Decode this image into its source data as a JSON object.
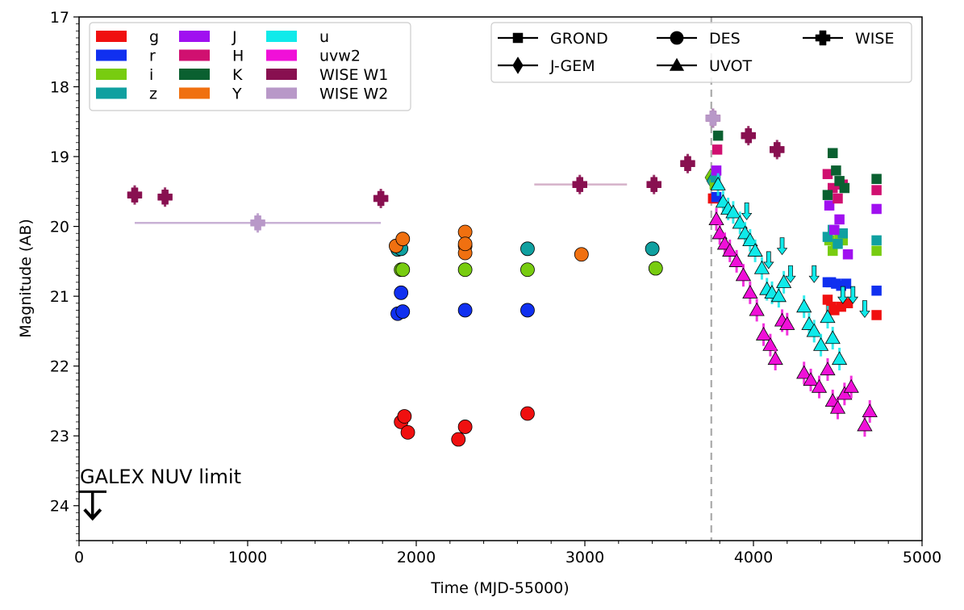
{
  "chart_data": {
    "type": "scatter",
    "title": "",
    "xlabel": "Time (MJD-55000)",
    "ylabel": "Magnitude (AB)",
    "xlim": [
      0,
      5000
    ],
    "ylim": [
      24.5,
      17
    ],
    "y_inverted": true,
    "x_ticks": [
      0,
      1000,
      2000,
      3000,
      4000,
      5000
    ],
    "y_ticks": [
      17,
      18,
      19,
      20,
      21,
      22,
      23,
      24
    ],
    "grid": false,
    "vertical_line": {
      "x": 3750,
      "style": "dashed",
      "color": "#aaaaaa"
    },
    "annotation": {
      "text": "GALEX NUV limit",
      "x": 80,
      "y": 23.8
    },
    "filter_legend": [
      {
        "label": "g",
        "color": "#f01010"
      },
      {
        "label": "r",
        "color": "#1030f0"
      },
      {
        "label": "i",
        "color": "#78cc10"
      },
      {
        "label": "z",
        "color": "#10a0a0"
      },
      {
        "label": "J",
        "color": "#a010f0"
      },
      {
        "label": "H",
        "color": "#d01070"
      },
      {
        "label": "K",
        "color": "#0a6030"
      },
      {
        "label": "Y",
        "color": "#f07010"
      },
      {
        "label": "u",
        "color": "#10eaea"
      },
      {
        "label": "uvw2",
        "color": "#f010d8"
      },
      {
        "label": "WISE W1",
        "color": "#881050"
      },
      {
        "label": "WISE W2",
        "color": "#b898c8"
      }
    ],
    "instrument_legend": [
      {
        "label": "GROND",
        "marker": "square"
      },
      {
        "label": "J-GEM",
        "marker": "diamond"
      },
      {
        "label": "DES",
        "marker": "circle"
      },
      {
        "label": "UVOT",
        "marker": "triangle"
      },
      {
        "label": "WISE",
        "marker": "plus"
      }
    ],
    "series": [
      {
        "name": "DES g",
        "filter": "g",
        "marker": "circle",
        "x": [
          1910,
          1930,
          1950,
          2250,
          2290,
          2660
        ],
        "y": [
          22.8,
          22.72,
          22.95,
          23.05,
          22.87,
          22.68
        ]
      },
      {
        "name": "DES r",
        "filter": "r",
        "marker": "circle",
        "x": [
          1890,
          1910,
          1920,
          2290,
          2660
        ],
        "y": [
          21.25,
          20.95,
          21.22,
          21.2,
          21.2
        ]
      },
      {
        "name": "DES i",
        "filter": "i",
        "marker": "circle",
        "x": [
          1910,
          1920,
          2290,
          2660,
          3420
        ],
        "y": [
          20.62,
          20.62,
          20.62,
          20.62,
          20.6
        ]
      },
      {
        "name": "DES z",
        "filter": "z",
        "marker": "circle",
        "x": [
          1890,
          1910,
          2660,
          3400
        ],
        "y": [
          20.33,
          20.32,
          20.32,
          20.32
        ]
      },
      {
        "name": "DES Y",
        "filter": "Y",
        "marker": "circle",
        "x": [
          1880,
          1920,
          2290,
          2290,
          2290,
          2290,
          2980
        ],
        "y": [
          20.28,
          20.18,
          20.08,
          20.28,
          20.38,
          20.25,
          20.4
        ]
      },
      {
        "name": "WISE W1",
        "filter": "WISE W1",
        "marker": "plus",
        "x": [
          330,
          510,
          1790,
          2970,
          3410,
          3610,
          3760,
          3970,
          4140
        ],
        "y": [
          19.55,
          19.58,
          19.6,
          19.4,
          19.4,
          19.1,
          18.45,
          18.7,
          18.9
        ]
      },
      {
        "name": "WISE W2",
        "filter": "WISE W2",
        "marker": "plus",
        "x": [
          1060,
          3760
        ],
        "y": [
          19.95,
          18.45
        ]
      },
      {
        "name": "J-GEM i",
        "filter": "i",
        "marker": "diamond",
        "x": [
          3745
        ],
        "y": [
          19.3
        ]
      },
      {
        "name": "J-GEM z",
        "filter": "z",
        "marker": "diamond",
        "x": [
          3755
        ],
        "y": [
          19.35
        ]
      },
      {
        "name": "GROND g",
        "filter": "g",
        "marker": "square",
        "x": [
          3760,
          4440,
          4460,
          4480,
          4520,
          4560,
          4730
        ],
        "y": [
          19.6,
          21.05,
          21.15,
          21.2,
          21.15,
          21.1,
          21.27
        ]
      },
      {
        "name": "GROND r",
        "filter": "r",
        "marker": "square",
        "x": [
          3780,
          4440,
          4460,
          4490,
          4520,
          4550,
          4730
        ],
        "y": [
          19.58,
          20.8,
          20.8,
          20.82,
          20.85,
          20.82,
          20.92
        ]
      },
      {
        "name": "GROND i",
        "filter": "i",
        "marker": "square",
        "x": [
          3770,
          4450,
          4470,
          4490,
          4510,
          4530,
          4730
        ],
        "y": [
          19.4,
          20.2,
          20.35,
          20.25,
          20.15,
          20.2,
          20.35
        ]
      },
      {
        "name": "GROND z",
        "filter": "z",
        "marker": "square",
        "x": [
          3775,
          4440,
          4470,
          4500,
          4530,
          4730
        ],
        "y": [
          19.3,
          20.15,
          20.05,
          20.25,
          20.1,
          20.2
        ]
      },
      {
        "name": "GROND J",
        "filter": "J",
        "marker": "square",
        "x": [
          3780,
          4450,
          4480,
          4510,
          4560,
          4730
        ],
        "y": [
          19.2,
          19.7,
          20.05,
          19.9,
          20.4,
          19.75
        ]
      },
      {
        "name": "GROND H",
        "filter": "H",
        "marker": "square",
        "x": [
          3785,
          4440,
          4470,
          4500,
          4530,
          4730
        ],
        "y": [
          18.9,
          19.25,
          19.45,
          19.6,
          19.4,
          19.48
        ]
      },
      {
        "name": "GROND K",
        "filter": "K",
        "marker": "square",
        "x": [
          3790,
          4440,
          4470,
          4490,
          4510,
          4540,
          4730
        ],
        "y": [
          18.7,
          19.55,
          18.95,
          19.2,
          19.35,
          19.45,
          19.32
        ]
      },
      {
        "name": "UVOT u",
        "filter": "u",
        "marker": "triangle",
        "x": [
          3790,
          3820,
          3850,
          3880,
          3920,
          3950,
          3980,
          4010,
          4050,
          4080,
          4110,
          4150,
          4180,
          4300,
          4330,
          4360,
          4400,
          4440,
          4470,
          4510
        ],
        "y": [
          19.4,
          19.65,
          19.75,
          19.8,
          19.95,
          20.1,
          20.2,
          20.35,
          20.6,
          20.9,
          20.95,
          21.0,
          20.8,
          21.15,
          21.4,
          21.5,
          21.7,
          21.3,
          21.6,
          21.9
        ]
      },
      {
        "name": "UVOT u limits",
        "filter": "u",
        "marker": "down-arrow",
        "x": [
          3960,
          4090,
          4170,
          4220,
          4360,
          4530,
          4590,
          4660
        ],
        "y": [
          19.8,
          20.5,
          20.3,
          20.7,
          20.7,
          21.0,
          21.0,
          21.2
        ]
      },
      {
        "name": "UVOT uvw2",
        "filter": "uvw2",
        "marker": "triangle",
        "x": [
          3780,
          3800,
          3830,
          3860,
          3900,
          3940,
          3980,
          4020,
          4060,
          4100,
          4130,
          4170,
          4200,
          4300,
          4340,
          4390,
          4440,
          4470,
          4500,
          4540,
          4580,
          4660,
          4690
        ],
        "y": [
          19.9,
          20.1,
          20.25,
          20.35,
          20.5,
          20.7,
          20.95,
          21.2,
          21.55,
          21.7,
          21.9,
          21.35,
          21.4,
          22.1,
          22.2,
          22.3,
          22.05,
          22.5,
          22.6,
          22.4,
          22.3,
          22.85,
          22.65
        ]
      }
    ]
  },
  "legend_box_colors": {
    "edge": "#cccccc"
  }
}
